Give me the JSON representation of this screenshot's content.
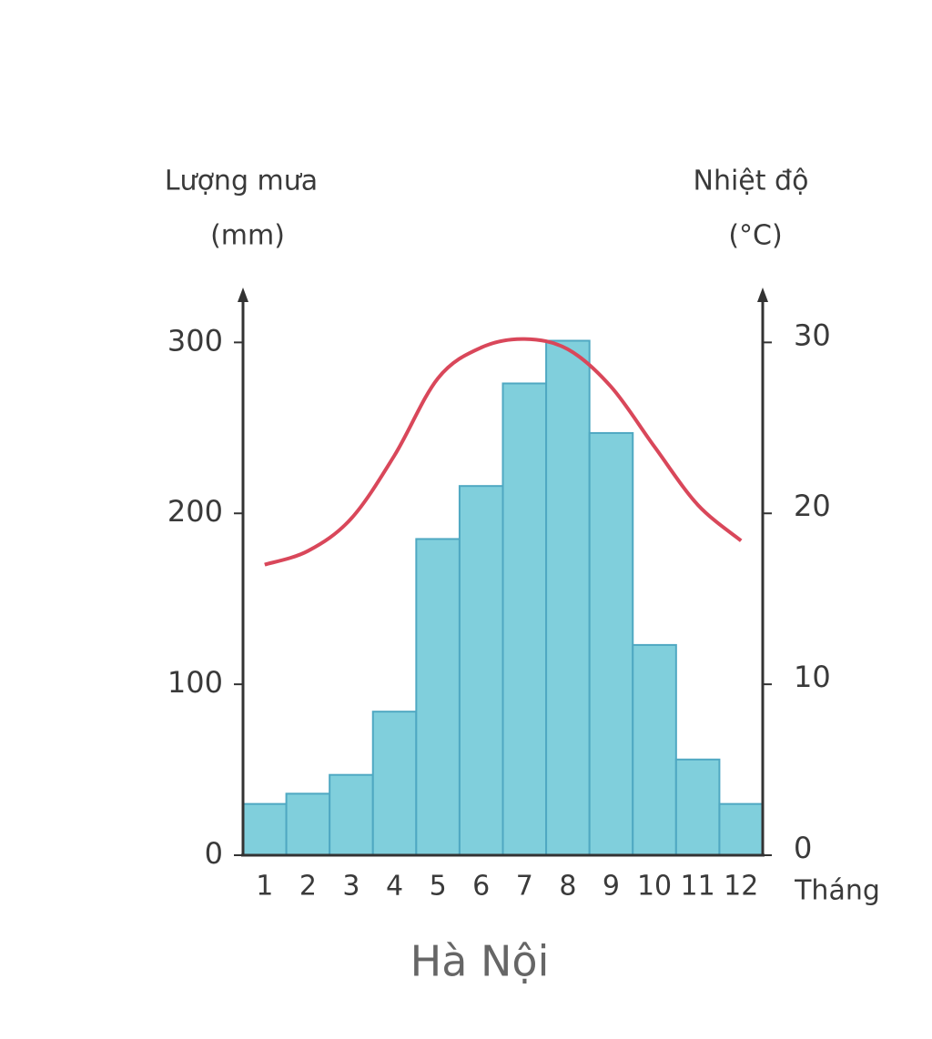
{
  "chart_data": {
    "type": "bar",
    "title": "Hà Nội",
    "ylabel": "Lượng mưa",
    "yunit": "(mm)",
    "y2label": "Nhiệt độ",
    "y2unit": "(°C)",
    "xlabel": "Tháng",
    "categories": [
      "1",
      "2",
      "3",
      "4",
      "5",
      "6",
      "7",
      "8",
      "9",
      "10",
      "11",
      "12"
    ],
    "series": [
      {
        "type": "bar",
        "color": "#80cfdc",
        "values": [
          30,
          36,
          47,
          84,
          185,
          216,
          276,
          301,
          247,
          123,
          56,
          30
        ]
      },
      {
        "type": "line",
        "axis": "y2",
        "color": "#d9475a",
        "values": [
          17.0,
          17.8,
          19.7,
          23.4,
          27.9,
          29.7,
          30.2,
          29.6,
          27.4,
          23.9,
          20.5,
          18.4
        ]
      }
    ],
    "ylim": [
      0,
      330
    ],
    "yticks": [
      0,
      100,
      200,
      300
    ],
    "y2lim": [
      0,
      33
    ],
    "y2ticks": [
      0,
      10,
      20,
      30
    ]
  }
}
